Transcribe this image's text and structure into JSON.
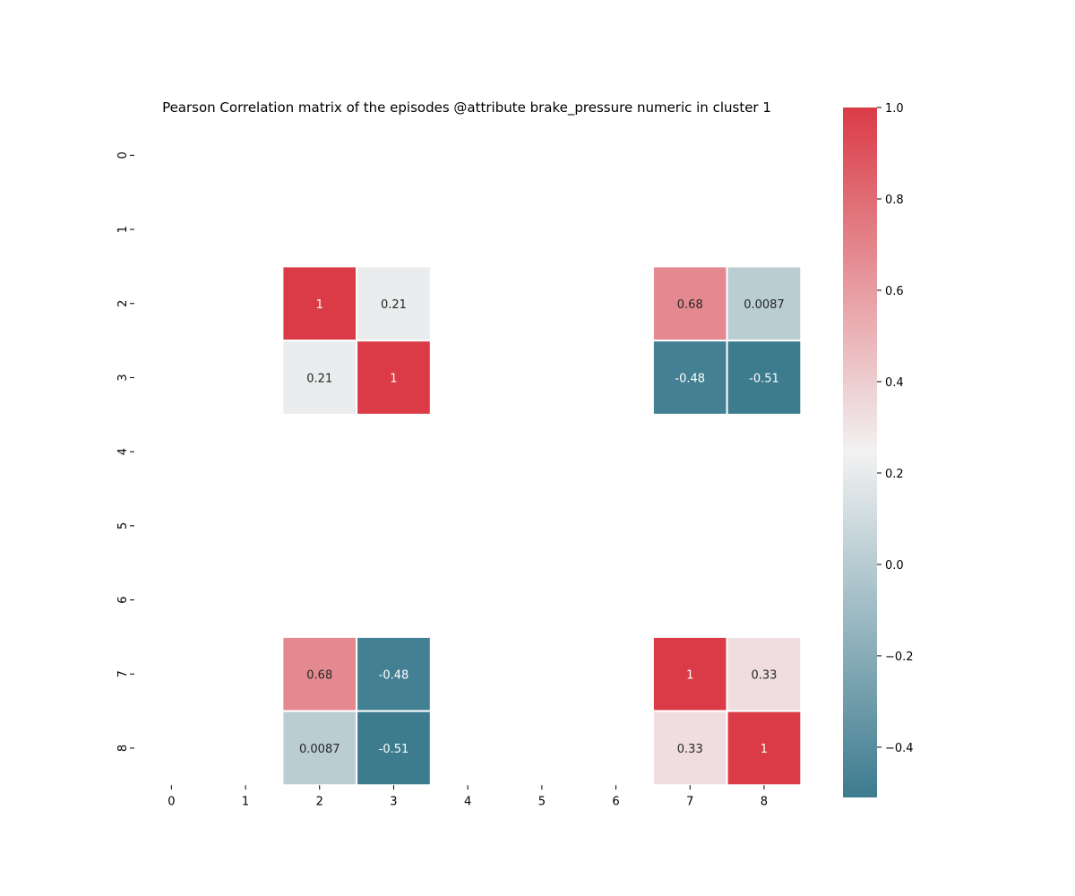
{
  "chart_data": {
    "type": "heatmap",
    "title": "Pearson Correlation matrix of the episodes  @attribute brake_pressure numeric in cluster  1",
    "xlabel": "",
    "ylabel": "",
    "x_categories": [
      "0",
      "1",
      "2",
      "3",
      "4",
      "5",
      "6",
      "7",
      "8"
    ],
    "y_categories": [
      "0",
      "1",
      "2",
      "3",
      "4",
      "5",
      "6",
      "7",
      "8"
    ],
    "values": [
      [
        null,
        null,
        null,
        null,
        null,
        null,
        null,
        null,
        null
      ],
      [
        null,
        null,
        null,
        null,
        null,
        null,
        null,
        null,
        null
      ],
      [
        null,
        null,
        1,
        0.21,
        null,
        null,
        null,
        0.68,
        0.0087
      ],
      [
        null,
        null,
        0.21,
        1,
        null,
        null,
        null,
        -0.48,
        -0.51
      ],
      [
        null,
        null,
        null,
        null,
        null,
        null,
        null,
        null,
        null
      ],
      [
        null,
        null,
        null,
        null,
        null,
        null,
        null,
        null,
        null
      ],
      [
        null,
        null,
        null,
        null,
        null,
        null,
        null,
        null,
        null
      ],
      [
        null,
        null,
        0.68,
        -0.48,
        null,
        null,
        null,
        1,
        0.33
      ],
      [
        null,
        null,
        0.0087,
        -0.51,
        null,
        null,
        null,
        0.33,
        1
      ]
    ],
    "colorbar": {
      "min": -0.51,
      "max": 1.0,
      "ticks": [
        1.0,
        0.8,
        0.6,
        0.4,
        0.2,
        0.0,
        -0.2,
        -0.4
      ],
      "tick_labels": [
        "1.0",
        "0.8",
        "0.6",
        "0.4",
        "0.2",
        "0.0",
        "−0.2",
        "−0.4"
      ],
      "colors": [
        "#3d7b8f",
        "#f2f2f2",
        "#da3b46"
      ],
      "center": 0.245
    },
    "annotated": true,
    "grid": false,
    "legend": "colorbar-right"
  }
}
